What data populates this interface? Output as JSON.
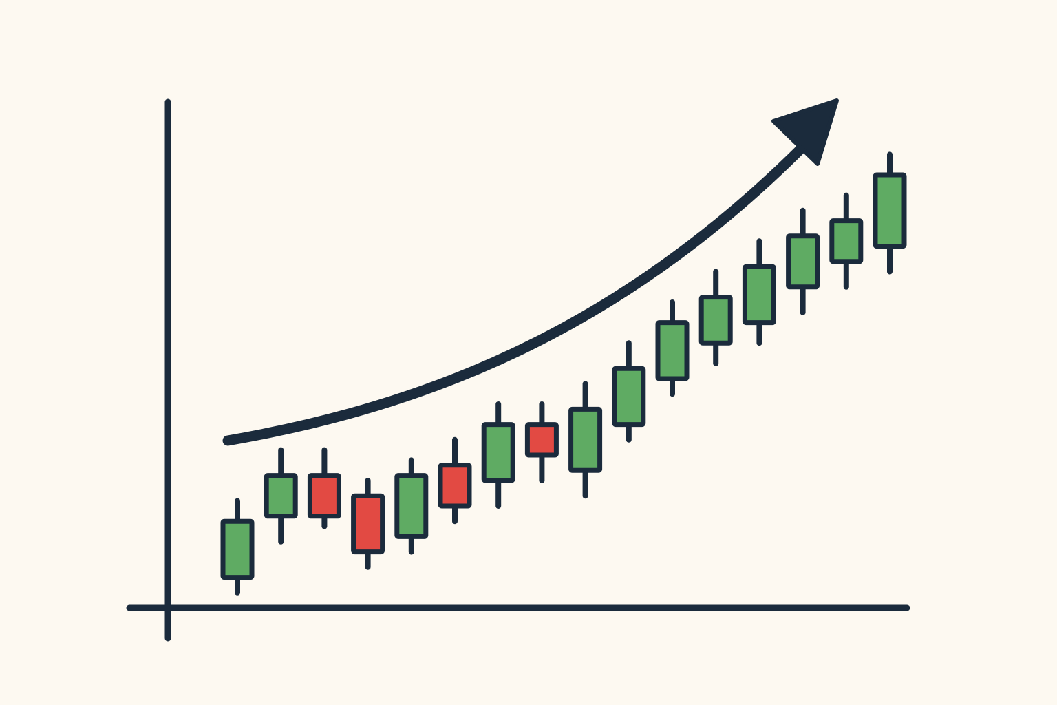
{
  "colors": {
    "background": "#fdf9f1",
    "outline": "#1b2b3c",
    "bullish": "#5fab63",
    "bearish": "#e24a43"
  },
  "icons": {
    "trend": "trend-arrow-icon"
  },
  "chart_data": {
    "type": "candlestick",
    "title": "",
    "xlabel": "",
    "ylabel": "",
    "grid": false,
    "legend": "none",
    "ylim": [
      0,
      100
    ],
    "trend": "up",
    "candles": [
      {
        "open": 6,
        "close": 17,
        "high": 21,
        "low": 3,
        "direction": "up"
      },
      {
        "open": 18,
        "close": 26,
        "high": 31,
        "low": 13,
        "direction": "up"
      },
      {
        "open": 26,
        "close": 18,
        "high": 31,
        "low": 16,
        "direction": "down"
      },
      {
        "open": 22,
        "close": 11,
        "high": 25,
        "low": 8,
        "direction": "down"
      },
      {
        "open": 14,
        "close": 26,
        "high": 29,
        "low": 11,
        "direction": "up"
      },
      {
        "open": 28,
        "close": 20,
        "high": 33,
        "low": 17,
        "direction": "down"
      },
      {
        "open": 25,
        "close": 36,
        "high": 40,
        "low": 20,
        "direction": "up"
      },
      {
        "open": 36,
        "close": 30,
        "high": 40,
        "low": 25,
        "direction": "down"
      },
      {
        "open": 27,
        "close": 39,
        "high": 44,
        "low": 22,
        "direction": "up"
      },
      {
        "open": 36,
        "close": 47,
        "high": 52,
        "low": 33,
        "direction": "up"
      },
      {
        "open": 45,
        "close": 56,
        "high": 60,
        "low": 42,
        "direction": "up"
      },
      {
        "open": 52,
        "close": 61,
        "high": 66,
        "low": 48,
        "direction": "up"
      },
      {
        "open": 56,
        "close": 67,
        "high": 72,
        "low": 52,
        "direction": "up"
      },
      {
        "open": 63,
        "close": 73,
        "high": 78,
        "low": 58,
        "direction": "up"
      },
      {
        "open": 68,
        "close": 76,
        "high": 81,
        "low": 63,
        "direction": "up"
      },
      {
        "open": 71,
        "close": 85,
        "high": 89,
        "low": 66,
        "direction": "up"
      }
    ]
  }
}
